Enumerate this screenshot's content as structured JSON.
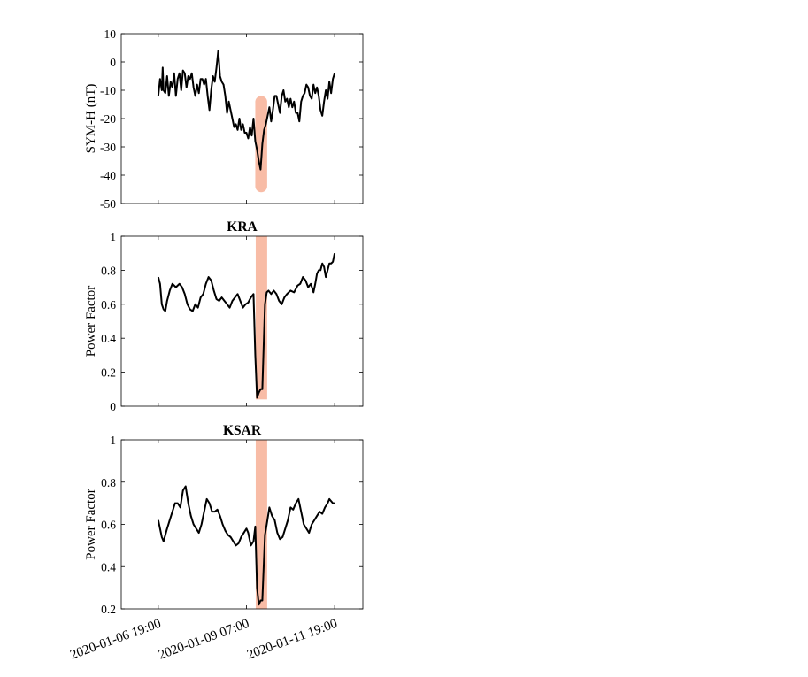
{
  "chart_data": [
    {
      "type": "line",
      "title": "",
      "ylabel": "SYM-H (nT)",
      "ylim": [
        -50,
        10
      ],
      "yticks": [
        10,
        0,
        -10,
        -20,
        -30,
        -40,
        -50
      ],
      "highlight": {
        "x_start": 2.2,
        "x_end": 2.47,
        "y_start": -46,
        "y_end": -12,
        "color": "#f7b59c"
      },
      "series": [
        {
          "x": [
            0,
            0.04,
            0.08,
            0.1,
            0.12,
            0.16,
            0.2,
            0.24,
            0.28,
            0.32,
            0.36,
            0.4,
            0.44,
            0.48,
            0.52,
            0.56,
            0.6,
            0.64,
            0.68,
            0.72,
            0.76,
            0.8,
            0.84,
            0.88,
            0.92,
            0.96,
            1.0,
            1.04,
            1.08,
            1.12,
            1.16,
            1.2,
            1.24,
            1.28,
            1.32,
            1.36,
            1.4,
            1.44,
            1.48,
            1.52,
            1.56,
            1.6,
            1.64,
            1.68,
            1.72,
            1.76,
            1.8,
            1.84,
            1.88,
            1.92,
            1.96,
            2.0,
            2.04,
            2.08,
            2.12,
            2.16,
            2.2,
            2.24,
            2.28,
            2.32,
            2.36,
            2.4,
            2.44,
            2.48,
            2.52,
            2.56,
            2.6,
            2.64,
            2.68,
            2.72,
            2.76,
            2.8,
            2.84,
            2.88,
            2.92,
            2.96,
            3.0,
            3.04,
            3.08,
            3.12,
            3.16,
            3.2,
            3.24,
            3.28,
            3.32,
            3.36,
            3.4,
            3.44,
            3.48,
            3.52,
            3.56,
            3.6,
            3.64,
            3.68,
            3.72,
            3.76,
            3.8,
            3.84,
            3.88,
            3.92,
            3.96,
            4.0
          ],
          "y": [
            -12,
            -6,
            -10,
            -2,
            -10,
            -11,
            -5,
            -12,
            -7,
            -9,
            -4,
            -12,
            -6,
            -4,
            -10,
            -3,
            -4,
            -9,
            -5,
            -6,
            -4,
            -9,
            -12,
            -8,
            -11,
            -6,
            -6,
            -8,
            -6,
            -12,
            -17,
            -10,
            -5,
            -7,
            -2,
            4,
            -5,
            -7,
            -8,
            -12,
            -18,
            -14,
            -17,
            -20,
            -23,
            -22,
            -24,
            -20,
            -24,
            -22,
            -25,
            -25,
            -27,
            -23,
            -26,
            -20,
            -28,
            -31,
            -35,
            -38,
            -29,
            -24,
            -22,
            -19,
            -16,
            -21,
            -17,
            -12,
            -12,
            -15,
            -18,
            -12,
            -10,
            -14,
            -13,
            -16,
            -13,
            -16,
            -14,
            -18,
            -18,
            -21,
            -14,
            -12,
            -11,
            -8,
            -9,
            -12,
            -13,
            -8,
            -11,
            -9,
            -12,
            -17,
            -19,
            -14,
            -10,
            -13,
            -7,
            -11,
            -6,
            -4
          ]
        }
      ]
    },
    {
      "type": "line",
      "title": "KRA",
      "ylabel": "Power Factor",
      "ylim": [
        0,
        1
      ],
      "yticks": [
        1,
        0.8,
        0.6,
        0.4,
        0.2,
        0
      ],
      "highlight": {
        "x_start": 2.21,
        "x_end": 2.47,
        "y_start": 0.04,
        "y_end": 1,
        "color": "#f7b59c"
      },
      "series": [
        {
          "x": [
            0,
            0.04,
            0.08,
            0.12,
            0.16,
            0.2,
            0.26,
            0.32,
            0.4,
            0.48,
            0.54,
            0.6,
            0.66,
            0.72,
            0.78,
            0.84,
            0.9,
            0.96,
            1.02,
            1.08,
            1.14,
            1.2,
            1.26,
            1.32,
            1.38,
            1.44,
            1.5,
            1.56,
            1.62,
            1.68,
            1.74,
            1.8,
            1.86,
            1.92,
            1.98,
            2.04,
            2.1,
            2.16,
            2.2,
            2.24,
            2.28,
            2.32,
            2.36,
            2.42,
            2.46,
            2.5,
            2.56,
            2.62,
            2.68,
            2.74,
            2.8,
            2.86,
            2.92,
            3.0,
            3.08,
            3.16,
            3.22,
            3.28,
            3.34,
            3.4,
            3.46,
            3.52,
            3.56,
            3.6,
            3.64,
            3.68,
            3.72,
            3.76,
            3.8,
            3.84,
            3.88,
            3.92,
            3.96,
            4.0
          ],
          "y": [
            0.76,
            0.72,
            0.6,
            0.57,
            0.56,
            0.62,
            0.68,
            0.72,
            0.7,
            0.72,
            0.7,
            0.66,
            0.6,
            0.57,
            0.56,
            0.6,
            0.58,
            0.64,
            0.66,
            0.72,
            0.76,
            0.74,
            0.68,
            0.63,
            0.62,
            0.64,
            0.62,
            0.6,
            0.58,
            0.62,
            0.64,
            0.66,
            0.62,
            0.58,
            0.6,
            0.61,
            0.64,
            0.66,
            0.3,
            0.05,
            0.08,
            0.1,
            0.1,
            0.6,
            0.67,
            0.68,
            0.66,
            0.68,
            0.66,
            0.62,
            0.6,
            0.64,
            0.66,
            0.68,
            0.67,
            0.71,
            0.72,
            0.76,
            0.74,
            0.7,
            0.72,
            0.67,
            0.72,
            0.78,
            0.8,
            0.8,
            0.84,
            0.82,
            0.76,
            0.8,
            0.84,
            0.84,
            0.85,
            0.9
          ]
        }
      ]
    },
    {
      "type": "line",
      "title": "KSAR",
      "ylabel": "Power Factor",
      "ylim": [
        0.2,
        1
      ],
      "yticks": [
        1,
        0.8,
        0.6,
        0.4,
        0.2
      ],
      "highlight": {
        "x_start": 2.21,
        "x_end": 2.47,
        "y_start": 0.2,
        "y_end": 1,
        "color": "#f7b59c"
      },
      "series": [
        {
          "x": [
            0,
            0.04,
            0.08,
            0.12,
            0.16,
            0.2,
            0.26,
            0.32,
            0.38,
            0.44,
            0.5,
            0.56,
            0.62,
            0.68,
            0.74,
            0.8,
            0.86,
            0.92,
            0.98,
            1.04,
            1.1,
            1.16,
            1.22,
            1.28,
            1.34,
            1.4,
            1.46,
            1.52,
            1.58,
            1.64,
            1.7,
            1.76,
            1.82,
            1.88,
            1.94,
            2.0,
            2.04,
            2.1,
            2.16,
            2.2,
            2.24,
            2.28,
            2.32,
            2.36,
            2.42,
            2.46,
            2.52,
            2.58,
            2.64,
            2.7,
            2.76,
            2.82,
            2.88,
            2.94,
            3.0,
            3.06,
            3.12,
            3.18,
            3.24,
            3.3,
            3.36,
            3.42,
            3.48,
            3.54,
            3.6,
            3.66,
            3.72,
            3.78,
            3.84,
            3.88,
            3.92,
            3.96,
            4.0
          ],
          "y": [
            0.62,
            0.58,
            0.54,
            0.52,
            0.55,
            0.58,
            0.62,
            0.66,
            0.7,
            0.7,
            0.68,
            0.76,
            0.78,
            0.7,
            0.64,
            0.6,
            0.58,
            0.56,
            0.6,
            0.66,
            0.72,
            0.7,
            0.66,
            0.66,
            0.67,
            0.64,
            0.6,
            0.57,
            0.55,
            0.54,
            0.52,
            0.5,
            0.51,
            0.54,
            0.56,
            0.58,
            0.56,
            0.5,
            0.52,
            0.59,
            0.3,
            0.22,
            0.24,
            0.24,
            0.55,
            0.6,
            0.68,
            0.64,
            0.62,
            0.56,
            0.53,
            0.54,
            0.58,
            0.62,
            0.68,
            0.67,
            0.7,
            0.72,
            0.66,
            0.6,
            0.58,
            0.56,
            0.6,
            0.62,
            0.64,
            0.66,
            0.65,
            0.68,
            0.7,
            0.72,
            0.71,
            0.7,
            0.7
          ]
        }
      ]
    }
  ],
  "x_axis": {
    "xlim": [
      -0.84,
      4.64
    ],
    "ticks": [
      0,
      2,
      4
    ],
    "tick_labels": [
      "2020-01-06 19:00",
      "2020-01-09 07:00",
      "2020-01-11 19:00"
    ]
  }
}
